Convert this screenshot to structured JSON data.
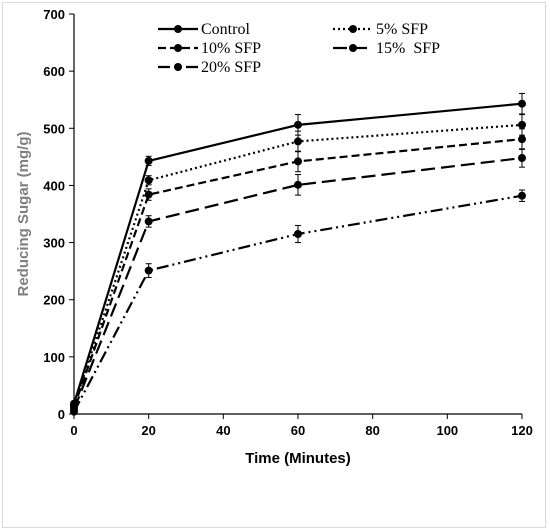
{
  "chart_data": {
    "type": "line",
    "xlabel": "Time (Minutes)",
    "ylabel": "Reducing Sugar (mg/g)",
    "xlim": [
      0,
      120
    ],
    "ylim": [
      0,
      700
    ],
    "xticks": [
      0,
      20,
      40,
      60,
      80,
      100,
      120
    ],
    "yticks": [
      0,
      100,
      200,
      300,
      400,
      500,
      600,
      700
    ],
    "x": [
      0,
      20,
      60,
      120
    ],
    "grid": false,
    "legend_position": "top",
    "series": [
      {
        "name": "Control",
        "dash": "solid",
        "values": [
          18,
          443,
          506,
          543
        ],
        "errors": [
          4,
          8,
          18,
          18
        ]
      },
      {
        "name": "5% SFP",
        "dash": "dotted",
        "values": [
          15,
          409,
          477,
          506
        ],
        "errors": [
          4,
          8,
          18,
          18
        ]
      },
      {
        "name": "10% SFP",
        "dash": "dashed",
        "values": [
          12,
          384,
          442,
          481
        ],
        "errors": [
          4,
          10,
          18,
          18
        ]
      },
      {
        "name": "15%  SFP",
        "dash": "long-dash",
        "values": [
          8,
          337,
          401,
          448
        ],
        "errors": [
          4,
          10,
          18,
          16
        ]
      },
      {
        "name": "20% SFP",
        "dash": "dash-dot-dot",
        "values": [
          4,
          251,
          315,
          382
        ],
        "errors": [
          3,
          12,
          15,
          10
        ]
      }
    ]
  }
}
